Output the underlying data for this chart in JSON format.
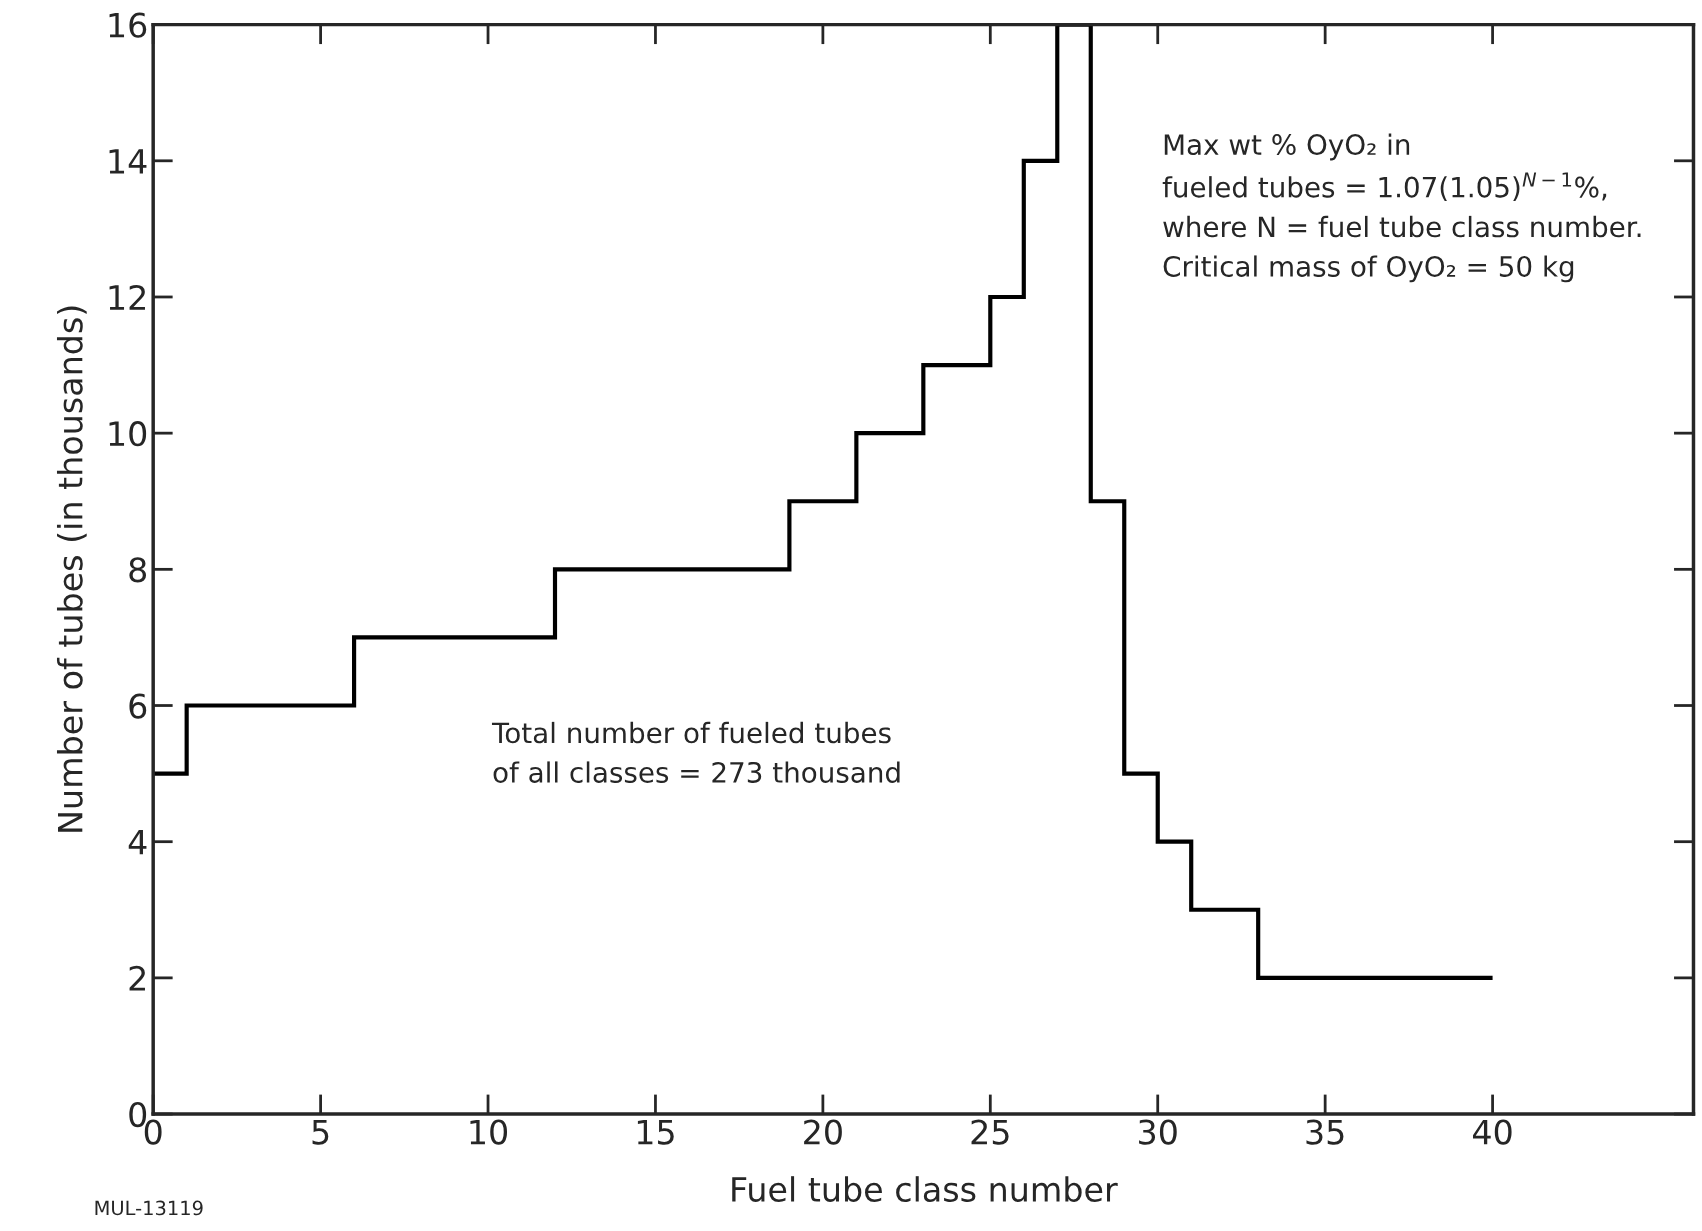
{
  "chart_data": {
    "type": "histogram",
    "xlabel": "Fuel tube class number",
    "ylabel": "Number of tubes (in thousands)",
    "bins": [
      0,
      1,
      6,
      12,
      19,
      21,
      23,
      25,
      26,
      27,
      28,
      29,
      30,
      31,
      33,
      40
    ],
    "values": [
      5,
      6,
      7,
      8,
      9,
      10,
      11,
      12,
      14,
      16,
      9,
      5,
      4,
      3,
      2
    ],
    "color": "#000000",
    "xlim": [
      0,
      46
    ],
    "xticks": [
      0,
      5,
      10,
      15,
      20,
      25,
      30,
      35,
      40
    ],
    "ylim": [
      0,
      16
    ],
    "yticks": [
      0,
      2,
      4,
      6,
      8,
      10,
      12,
      14,
      16
    ],
    "grid": false,
    "legend": false,
    "annotations": [
      "Max wt % OyO₂ in\nfueled tubes = 1.07(1.05)$^{N−1}$%,\nwhere N = fuel tube class number.\nCritical mass of OyO₂ = 50 kg",
      "Total number of fueled tubes\nof all classes = 273 thousand",
      "MUL-13119"
    ]
  }
}
